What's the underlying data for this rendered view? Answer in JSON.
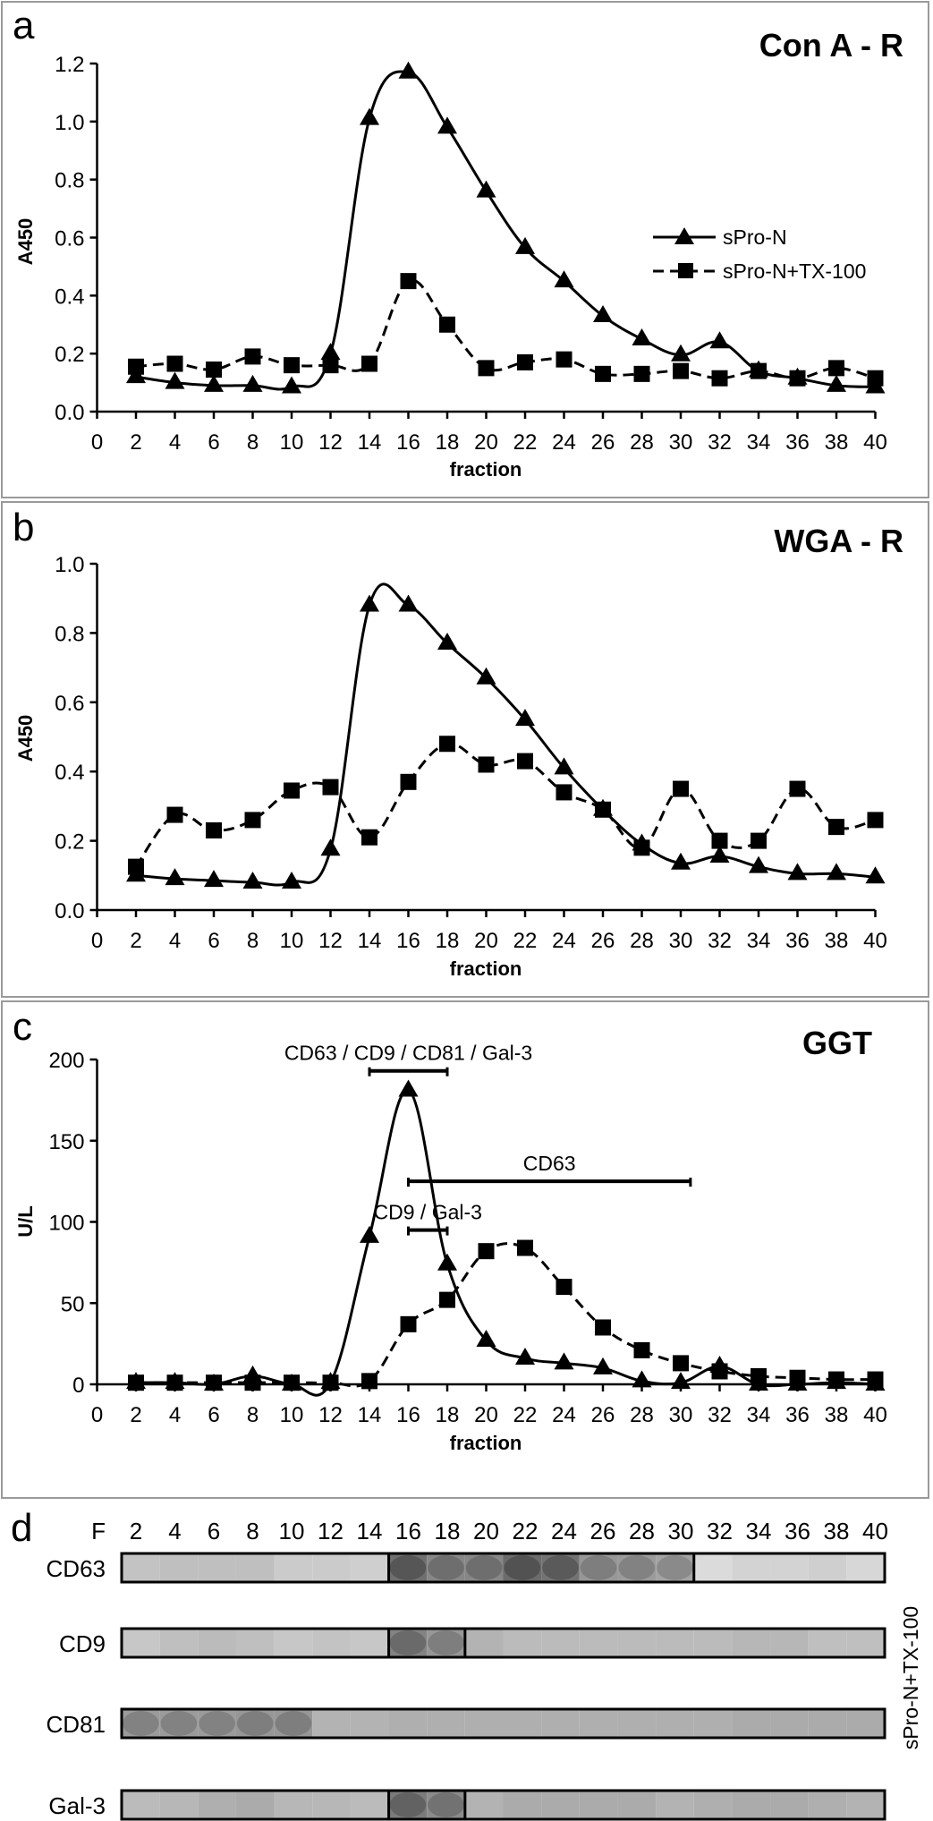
{
  "figure": {
    "x_axis_label": "fraction",
    "x_ticks": [
      0,
      2,
      4,
      6,
      8,
      10,
      12,
      14,
      16,
      18,
      20,
      22,
      24,
      26,
      28,
      30,
      32,
      34,
      36,
      38,
      40
    ],
    "legend": {
      "placement": "center-right (panel a)",
      "entries": [
        {
          "name": "sPro-N",
          "marker": "triangle",
          "line": "solid"
        },
        {
          "name": "sPro-N+TX-100",
          "marker": "square",
          "line": "dashed"
        }
      ]
    }
  },
  "chart_data": [
    {
      "panel": "a",
      "type": "line",
      "title": "Con A - R",
      "xlabel": "fraction",
      "ylabel": "A450",
      "ylim": [
        0,
        1.2
      ],
      "yticks": [
        0.0,
        0.2,
        0.4,
        0.6,
        0.8,
        1.0,
        1.2
      ],
      "ytick_labels": [
        "0.0",
        "0.2",
        "0.4",
        "0.6",
        "0.8",
        "1.0",
        "1.2"
      ],
      "xlim": [
        0,
        40
      ],
      "grid": false,
      "legend": "center-right",
      "x": [
        2,
        4,
        6,
        8,
        10,
        12,
        14,
        16,
        18,
        20,
        22,
        24,
        26,
        28,
        30,
        32,
        34,
        36,
        38,
        40
      ],
      "series": [
        {
          "name": "sPro-N",
          "values": [
            0.12,
            0.1,
            0.09,
            0.09,
            0.085,
            0.2,
            1.01,
            1.17,
            0.98,
            0.76,
            0.565,
            0.45,
            0.33,
            0.25,
            0.195,
            0.24,
            0.14,
            0.115,
            0.09,
            0.085
          ]
        },
        {
          "name": "sPro-N+TX-100",
          "values": [
            0.155,
            0.165,
            0.145,
            0.19,
            0.16,
            0.16,
            0.165,
            0.45,
            0.3,
            0.15,
            0.17,
            0.18,
            0.13,
            0.13,
            0.14,
            0.115,
            0.14,
            0.115,
            0.15,
            0.115
          ]
        }
      ]
    },
    {
      "panel": "b",
      "type": "line",
      "title": "WGA - R",
      "xlabel": "fraction",
      "ylabel": "A450",
      "ylim": [
        0,
        1.0
      ],
      "yticks": [
        0.0,
        0.2,
        0.4,
        0.6,
        0.8,
        1.0
      ],
      "ytick_labels": [
        "0.0",
        "0.2",
        "0.4",
        "0.6",
        "0.8",
        "1.0"
      ],
      "xlim": [
        0,
        40
      ],
      "grid": false,
      "x": [
        2,
        4,
        6,
        8,
        10,
        12,
        14,
        16,
        18,
        20,
        22,
        24,
        26,
        28,
        30,
        32,
        34,
        36,
        38,
        40
      ],
      "series": [
        {
          "name": "sPro-N",
          "values": [
            0.1,
            0.09,
            0.085,
            0.08,
            0.08,
            0.175,
            0.88,
            0.88,
            0.77,
            0.67,
            0.55,
            0.41,
            0.29,
            0.19,
            0.135,
            0.155,
            0.125,
            0.105,
            0.105,
            0.095
          ]
        },
        {
          "name": "sPro-N+TX-100",
          "values": [
            0.125,
            0.275,
            0.23,
            0.26,
            0.345,
            0.355,
            0.21,
            0.37,
            0.48,
            0.42,
            0.43,
            0.34,
            0.29,
            0.18,
            0.35,
            0.2,
            0.2,
            0.35,
            0.24,
            0.26
          ]
        }
      ]
    },
    {
      "panel": "c",
      "type": "line",
      "title": "GGT",
      "xlabel": "fraction",
      "ylabel": "U/L",
      "ylim": [
        0,
        200
      ],
      "yticks": [
        0,
        50,
        100,
        150,
        200
      ],
      "ytick_labels": [
        "0",
        "50",
        "100",
        "150",
        "200"
      ],
      "xlim": [
        0,
        40
      ],
      "grid": false,
      "x": [
        2,
        4,
        6,
        8,
        10,
        12,
        14,
        16,
        18,
        20,
        22,
        24,
        26,
        28,
        30,
        32,
        34,
        36,
        38,
        40
      ],
      "series": [
        {
          "name": "sPro-N",
          "values": [
            1,
            1,
            0,
            5,
            0,
            1,
            91,
            181,
            74,
            27,
            16,
            13,
            10,
            2,
            1,
            11,
            0,
            0,
            1,
            0
          ]
        },
        {
          "name": "sPro-N+TX-100",
          "values": [
            1,
            1,
            1,
            1,
            1,
            1,
            2,
            37,
            52,
            82,
            84,
            60,
            35,
            21,
            13,
            8,
            5,
            4,
            3,
            3
          ]
        }
      ],
      "annotations": [
        {
          "label": "CD63 / CD9 / CD81 / Gal-3",
          "x_start": 14,
          "x_end": 18,
          "y": 193
        },
        {
          "label": "CD63",
          "x_start": 16,
          "x_end": 30.5,
          "y": 125
        },
        {
          "label": "CD9 / Gal-3",
          "x_start": 16,
          "x_end": 18,
          "y": 95
        }
      ]
    }
  ],
  "blot": {
    "panel": "d",
    "header_label": "F",
    "fractions": [
      "2",
      "4",
      "6",
      "8",
      "10",
      "12",
      "14",
      "16",
      "18",
      "20",
      "22",
      "24",
      "26",
      "28",
      "30",
      "32",
      "34",
      "36",
      "38",
      "40"
    ],
    "side_label": "sPro-N+TX-100",
    "rows": [
      {
        "label": "CD63",
        "intensities": [
          0.2,
          0.22,
          0.22,
          0.22,
          0.16,
          0.16,
          0.14,
          0.62,
          0.5,
          0.5,
          0.64,
          0.6,
          0.42,
          0.4,
          0.36,
          0.08,
          0.12,
          0.12,
          0.14,
          0.1
        ],
        "dividers_after": [
          7,
          15
        ]
      },
      {
        "label": "CD9",
        "intensities": [
          0.18,
          0.22,
          0.24,
          0.22,
          0.18,
          0.2,
          0.18,
          0.52,
          0.42,
          0.28,
          0.24,
          0.24,
          0.24,
          0.24,
          0.24,
          0.24,
          0.26,
          0.26,
          0.22,
          0.22
        ],
        "dividers_after": [
          7,
          9
        ]
      },
      {
        "label": "CD81",
        "intensities": [
          0.4,
          0.4,
          0.4,
          0.42,
          0.42,
          0.28,
          0.28,
          0.3,
          0.3,
          0.3,
          0.3,
          0.3,
          0.3,
          0.3,
          0.3,
          0.3,
          0.32,
          0.32,
          0.32,
          0.32
        ],
        "dividers_after": []
      },
      {
        "label": "Gal-3",
        "intensities": [
          0.24,
          0.26,
          0.3,
          0.32,
          0.26,
          0.26,
          0.24,
          0.56,
          0.48,
          0.28,
          0.32,
          0.32,
          0.32,
          0.32,
          0.28,
          0.3,
          0.32,
          0.32,
          0.3,
          0.28
        ],
        "dividers_after": [
          7,
          9
        ]
      }
    ]
  },
  "colors": {
    "ink": "#000000",
    "panel_border": "#9a9a9a",
    "background": "#ffffff"
  }
}
